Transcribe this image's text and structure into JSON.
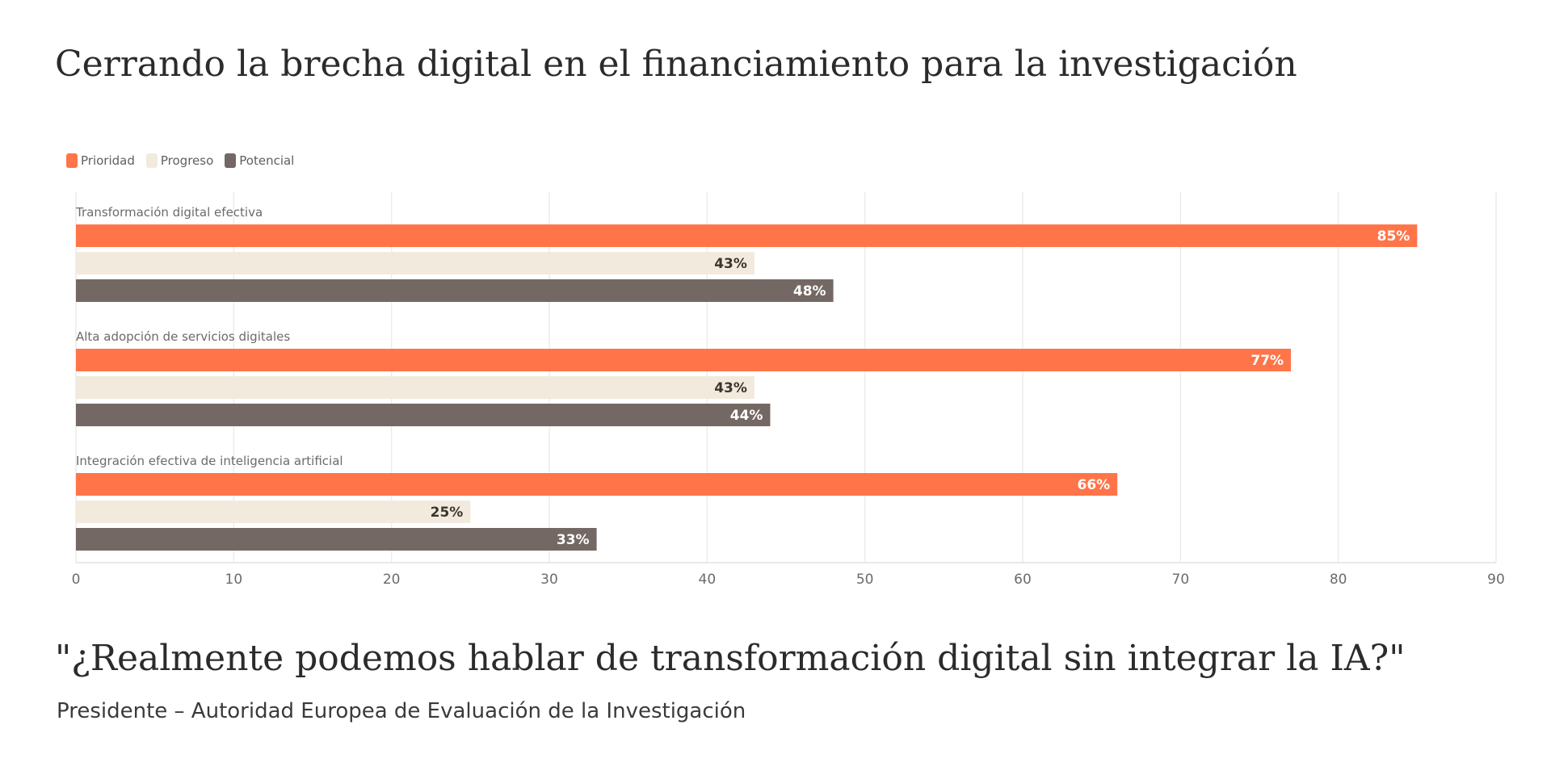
{
  "page": {
    "title": "Cerrando la brecha digital en el financiamiento para la investigación",
    "quote": "\"¿Realmente podemos hablar de transformación digital sin integrar la IA?\"",
    "attribution": "Presidente – Autoridad Europea de Evaluación de la Investigación"
  },
  "colors": {
    "Prioridad": "#ff7549",
    "Progreso": "#f2eadd",
    "Potencial": "#736863",
    "grid": "#ececec",
    "axis_text": "#6b6b6b",
    "category_text": "#6b6b6b",
    "label_dark": "#3b3530",
    "label_light": "#ffffff"
  },
  "chart_data": {
    "type": "bar",
    "orientation": "horizontal",
    "categories": [
      "Transformación digital efectiva",
      "Alta adopción de servicios digitales",
      "Integración efectiva de inteligencia artificial"
    ],
    "series": [
      {
        "name": "Prioridad",
        "values": [
          85,
          77,
          66
        ],
        "labels": [
          "85%",
          "77%",
          "66%"
        ]
      },
      {
        "name": "Progreso",
        "values": [
          43,
          43,
          25
        ],
        "labels": [
          "43%",
          "43%",
          "25%"
        ]
      },
      {
        "name": "Potencial",
        "values": [
          48,
          44,
          33
        ],
        "labels": [
          "48%",
          "44%",
          "33%"
        ]
      }
    ],
    "xlim": [
      0,
      90
    ],
    "xticks": [
      0,
      10,
      20,
      30,
      40,
      50,
      60,
      70,
      80,
      90
    ],
    "grid": true,
    "legend_position": "top-left"
  }
}
